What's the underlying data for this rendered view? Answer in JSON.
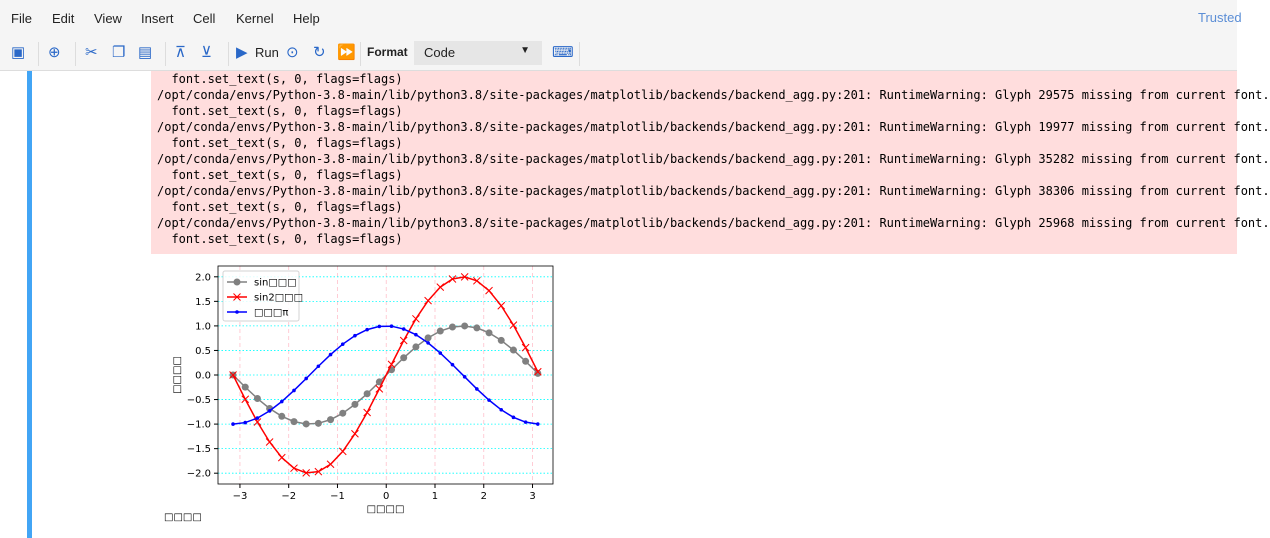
{
  "menu": [
    "File",
    "Edit",
    "View",
    "Insert",
    "Cell",
    "Kernel",
    "Help"
  ],
  "trusted": "Trusted",
  "toolbar": {
    "run_label": "Run",
    "format_label": "Format",
    "cell_type": "Code"
  },
  "stderr": {
    "first_line": "  font.set_text(s, 0, flags=flags)",
    "warnings": [
      "/opt/conda/envs/Python-3.8-main/lib/python3.8/site-packages/matplotlib/backends/backend_agg.py:201: RuntimeWarning: Glyph 29575 missing from current font.",
      "/opt/conda/envs/Python-3.8-main/lib/python3.8/site-packages/matplotlib/backends/backend_agg.py:201: RuntimeWarning: Glyph 19977 missing from current font.",
      "/opt/conda/envs/Python-3.8-main/lib/python3.8/site-packages/matplotlib/backends/backend_agg.py:201: RuntimeWarning: Glyph 35282 missing from current font.",
      "/opt/conda/envs/Python-3.8-main/lib/python3.8/site-packages/matplotlib/backends/backend_agg.py:201: RuntimeWarning: Glyph 38306 missing from current font.",
      "/opt/conda/envs/Python-3.8-main/lib/python3.8/site-packages/matplotlib/backends/backend_agg.py:201: RuntimeWarning: Glyph 25968 missing from current font."
    ],
    "followup": "  font.set_text(s, 0, flags=flags)"
  },
  "footer_text": "□□□□",
  "chart_data": {
    "type": "line",
    "xlabel": "□□□□",
    "ylabel": "□□□□",
    "xlim": [
      -3.45,
      3.42
    ],
    "ylim": [
      -2.22,
      2.22
    ],
    "xticks": [
      -3,
      -2,
      -1,
      0,
      1,
      2,
      3
    ],
    "xtick_labels": [
      "−3",
      "−2",
      "−1",
      "0",
      "1",
      "2",
      "3"
    ],
    "yticks": [
      -2,
      -1.5,
      -1,
      -0.5,
      0,
      0.5,
      1,
      1.5,
      2
    ],
    "ytick_labels": [
      "−2.0",
      "−1.5",
      "−1.0",
      "−0.5",
      "0.0",
      "0.5",
      "1.0",
      "1.5",
      "2.0"
    ],
    "grid": {
      "x": "dashed pink",
      "y": "dotted cyan"
    },
    "legend_position": "upper-left",
    "x": [
      -3.1416,
      -2.8916,
      -2.6416,
      -2.3916,
      -2.1416,
      -1.8916,
      -1.6416,
      -1.3916,
      -1.1416,
      -0.8916,
      -0.6416,
      -0.3916,
      -0.1416,
      0.1084,
      0.3584,
      0.6084,
      0.8584,
      1.1084,
      1.3584,
      1.6084,
      1.8584,
      2.1084,
      2.3584,
      2.6084,
      2.8584,
      3.1084
    ],
    "series": [
      {
        "name": "sin□□□",
        "color": "#808080",
        "marker": "circle",
        "values": [
          0,
          -0.247,
          -0.479,
          -0.682,
          -0.841,
          -0.949,
          -0.997,
          -0.984,
          -0.909,
          -0.778,
          -0.598,
          -0.382,
          -0.141,
          0.108,
          0.351,
          0.572,
          0.757,
          0.895,
          0.978,
          0.999,
          0.959,
          0.859,
          0.705,
          0.508,
          0.279,
          0.033
        ]
      },
      {
        "name": "sin2□□□",
        "color": "#ff0000",
        "marker": "x",
        "values": [
          0,
          -0.494,
          -0.958,
          -1.364,
          -1.682,
          -1.898,
          -1.994,
          -1.968,
          -1.818,
          -1.556,
          -1.196,
          -0.764,
          -0.282,
          0.216,
          0.702,
          1.144,
          1.514,
          1.79,
          1.956,
          1.998,
          1.918,
          1.718,
          1.41,
          1.016,
          0.558,
          0.066
        ]
      },
      {
        "name": "□□□π",
        "color": "#0000ff",
        "marker": "point",
        "values": [
          -1,
          -0.969,
          -0.878,
          -0.731,
          -0.54,
          -0.315,
          -0.071,
          0.178,
          0.416,
          0.628,
          0.801,
          0.924,
          0.99,
          0.994,
          0.936,
          0.821,
          0.654,
          0.446,
          0.211,
          -0.037,
          -0.284,
          -0.512,
          -0.709,
          -0.862,
          -0.96,
          -0.999
        ]
      }
    ]
  }
}
